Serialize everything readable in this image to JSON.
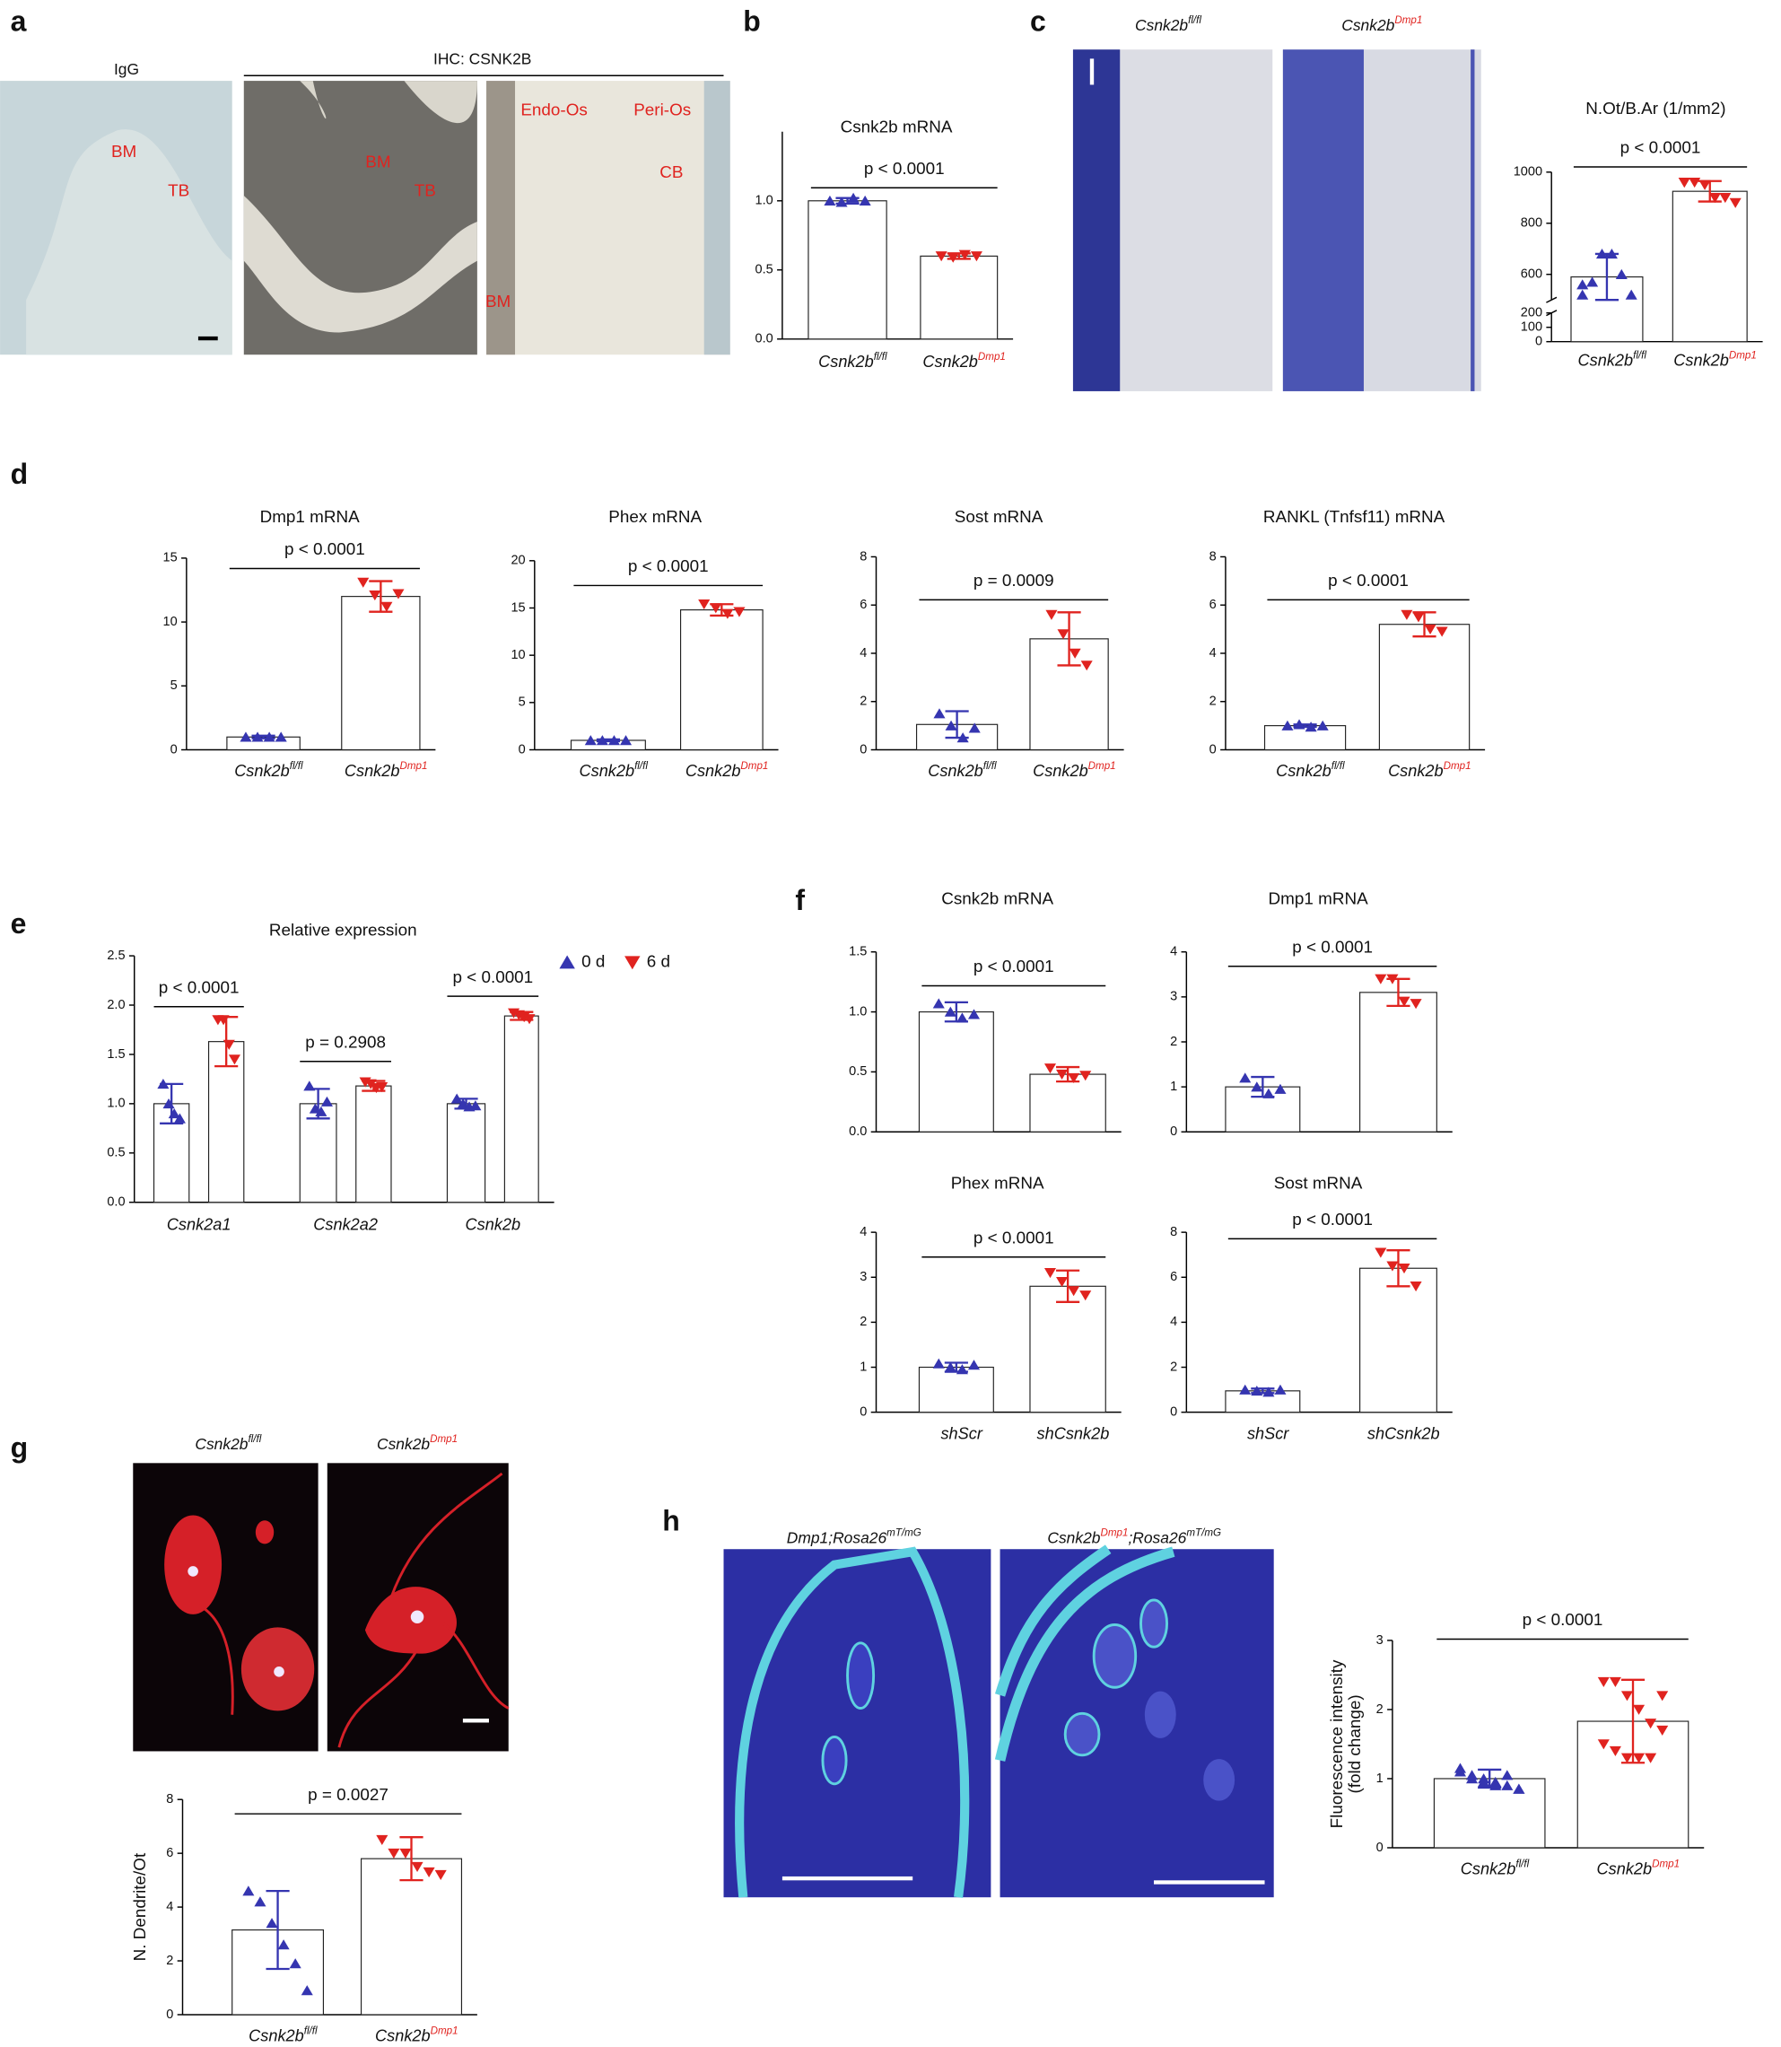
{
  "panel_letters": [
    "a",
    "b",
    "c",
    "d",
    "e",
    "f",
    "g",
    "h"
  ],
  "panel_a": {
    "igg_label": "IgG",
    "ihc_label": "IHC: CSNK2B",
    "image_labels": [
      "BM",
      "TB",
      "BM",
      "TB",
      "Endo-Os",
      "Peri-Os",
      "CB",
      "BM"
    ]
  },
  "panel_c_images": [
    [
      "Csnk2b",
      "fl/fl"
    ],
    [
      "Csnk2b",
      "Dmp1"
    ]
  ],
  "panel_g_images": [
    [
      "Csnk2b",
      "fl/fl"
    ],
    [
      "Csnk2b",
      "Dmp1"
    ]
  ],
  "panel_h_images": [
    [
      "Dmp1;Rosa26",
      "mT/mG"
    ],
    [
      "Csnk2b",
      "Dmp1",
      ";Rosa26",
      "mT/mG"
    ]
  ],
  "chart_data": [
    {
      "type": "bar",
      "title": "Csnk2b mRNA",
      "categories": [
        "Csnk2b",
        "Csnk2b"
      ],
      "category_superscripts": [
        "fl/fl",
        "Dmp1"
      ],
      "values": [
        1.0,
        0.6
      ],
      "errors": [
        0.02,
        0.02
      ],
      "points": [
        [
          1.0,
          0.99,
          1.02,
          1.0
        ],
        [
          0.6,
          0.59,
          0.61,
          0.6
        ]
      ],
      "colors": [
        "#3535b0",
        "#e0231f"
      ],
      "markers": [
        "triangle-up",
        "triangle-down"
      ],
      "annotation": "p < 0.0001",
      "ylim": [
        0,
        1.5
      ],
      "yticks": [
        {
          "value": 0,
          "label": "0.0"
        },
        {
          "value": 0.5,
          "label": "0.5"
        },
        {
          "value": 1.0,
          "label": "1.0"
        }
      ]
    },
    {
      "type": "bar",
      "title": "N.Ot/B.Ar (1/mm2)",
      "categories": [
        "Csnk2b",
        "Csnk2b"
      ],
      "category_superscripts": [
        "fl/fl",
        "Dmp1"
      ],
      "values": [
        590,
        925
      ],
      "errors": [
        90,
        40
      ],
      "points": [
        [
          560,
          570,
          680,
          680,
          600,
          520,
          520
        ],
        [
          960,
          960,
          950,
          900,
          900,
          880,
          960
        ]
      ],
      "colors": [
        "#3535b0",
        "#e0231f"
      ],
      "markers": [
        "triangle-up",
        "triangle-down"
      ],
      "annotation": "p < 0.0001",
      "ylim": [
        0,
        1000
      ],
      "axis_break": [
        200,
        500
      ],
      "yticks": [
        0,
        100,
        200,
        600,
        800,
        1000
      ]
    },
    {
      "type": "bar",
      "title": "Dmp1 mRNA",
      "categories": [
        "Csnk2b",
        "Csnk2b"
      ],
      "category_superscripts": [
        "fl/fl",
        "Dmp1"
      ],
      "values": [
        1.0,
        12.0
      ],
      "errors": [
        0.1,
        1.2
      ],
      "points": [
        [
          1.0,
          1.0,
          1.0,
          1.0
        ],
        [
          13.1,
          12.1,
          11.2,
          12.2
        ]
      ],
      "colors": [
        "#3535b0",
        "#e0231f"
      ],
      "markers": [
        "triangle-up",
        "triangle-down"
      ],
      "annotation": "p < 0.0001",
      "ylim": [
        0,
        15
      ],
      "yticks": [
        0,
        5,
        10,
        15
      ]
    },
    {
      "type": "bar",
      "title": "Phex mRNA",
      "categories": [
        "Csnk2b",
        "Csnk2b"
      ],
      "category_superscripts": [
        "fl/fl",
        "Dmp1"
      ],
      "values": [
        1.0,
        14.8
      ],
      "errors": [
        0.1,
        0.6
      ],
      "points": [
        [
          1.0,
          1.0,
          1.0,
          1.0
        ],
        [
          15.4,
          15.0,
          14.4,
          14.6
        ]
      ],
      "colors": [
        "#3535b0",
        "#e0231f"
      ],
      "markers": [
        "triangle-up",
        "triangle-down"
      ],
      "annotation": "p < 0.0001",
      "ylim": [
        0,
        20
      ],
      "yticks": [
        0,
        5,
        10,
        15,
        20
      ]
    },
    {
      "type": "bar",
      "title": "Sost mRNA",
      "categories": [
        "Csnk2b",
        "Csnk2b"
      ],
      "category_superscripts": [
        "fl/fl",
        "Dmp1"
      ],
      "values": [
        1.05,
        4.6
      ],
      "errors": [
        0.55,
        1.1
      ],
      "points": [
        [
          1.5,
          1.0,
          0.5,
          0.9
        ],
        [
          5.6,
          4.8,
          4.0,
          3.5
        ]
      ],
      "colors": [
        "#3535b0",
        "#e0231f"
      ],
      "markers": [
        "triangle-up",
        "triangle-down"
      ],
      "annotation": "p = 0.0009",
      "ylim": [
        0,
        8
      ],
      "yticks": [
        0,
        2,
        4,
        6,
        8
      ]
    },
    {
      "type": "bar",
      "title": "RANKL (Tnfsf11) mRNA",
      "categories": [
        "Csnk2b",
        "Csnk2b"
      ],
      "category_superscripts": [
        "fl/fl",
        "Dmp1"
      ],
      "values": [
        1.0,
        5.2
      ],
      "errors": [
        0.05,
        0.5
      ],
      "points": [
        [
          1.0,
          1.05,
          0.95,
          1.0
        ],
        [
          5.6,
          5.5,
          5.0,
          4.9
        ]
      ],
      "colors": [
        "#3535b0",
        "#e0231f"
      ],
      "markers": [
        "triangle-up",
        "triangle-down"
      ],
      "annotation": "p < 0.0001",
      "ylim": [
        0,
        8
      ],
      "yticks": [
        0,
        2,
        4,
        6,
        8
      ]
    },
    {
      "type": "bar",
      "title": "Relative  expression",
      "categories": [
        "Csnk2a1",
        "Csnk2a2",
        "Csnk2b"
      ],
      "series": [
        {
          "name": "0 d",
          "color": "#3535b0",
          "marker": "triangle-up",
          "values": [
            1.0,
            1.0,
            1.0
          ],
          "errors": [
            0.2,
            0.15,
            0.05
          ],
          "points": [
            [
              1.2,
              1.0,
              0.9,
              0.85
            ],
            [
              1.18,
              0.95,
              0.92,
              1.02
            ],
            [
              1.05,
              1.0,
              0.97,
              0.98
            ]
          ]
        },
        {
          "name": "6 d",
          "color": "#e0231f",
          "marker": "triangle-down",
          "values": [
            1.63,
            1.18,
            1.89
          ],
          "errors": [
            0.25,
            0.05,
            0.04
          ],
          "points": [
            [
              1.85,
              1.85,
              1.6,
              1.45
            ],
            [
              1.22,
              1.2,
              1.16,
              1.17
            ],
            [
              1.92,
              1.9,
              1.88,
              1.86
            ]
          ]
        }
      ],
      "annotations": [
        "p < 0.0001",
        "p = 0.2908",
        "p < 0.0001"
      ],
      "ylim": [
        0,
        2.5
      ],
      "yticks": [
        {
          "value": 0,
          "label": "0.0"
        },
        {
          "value": 0.5,
          "label": "0.5"
        },
        {
          "value": 1.0,
          "label": "1.0"
        },
        {
          "value": 1.5,
          "label": "1.5"
        },
        {
          "value": 2.0,
          "label": "2.0"
        },
        {
          "value": 2.5,
          "label": "2.5"
        }
      ]
    },
    {
      "type": "bar",
      "title": "Csnk2b mRNA",
      "categories": [
        null,
        null
      ],
      "values": [
        1.0,
        0.48
      ],
      "errors": [
        0.08,
        0.06
      ],
      "points": [
        [
          1.07,
          1.0,
          0.95,
          0.98
        ],
        [
          0.53,
          0.48,
          0.45,
          0.47
        ]
      ],
      "colors": [
        "#3535b0",
        "#e0231f"
      ],
      "markers": [
        "triangle-up",
        "triangle-down"
      ],
      "annotation": "p < 0.0001",
      "ylim": [
        0,
        1.5
      ],
      "yticks": [
        {
          "value": 0,
          "label": "0.0"
        },
        {
          "value": 0.5,
          "label": "0.5"
        },
        {
          "value": 1.0,
          "label": "1.0"
        },
        {
          "value": 1.5,
          "label": "1.5"
        }
      ]
    },
    {
      "type": "bar",
      "title": "Dmp1 mRNA",
      "categories": [
        null,
        null
      ],
      "values": [
        1.0,
        3.1
      ],
      "errors": [
        0.22,
        0.3
      ],
      "points": [
        [
          1.2,
          1.0,
          0.85,
          0.95
        ],
        [
          3.4,
          3.4,
          2.9,
          2.85
        ]
      ],
      "colors": [
        "#3535b0",
        "#e0231f"
      ],
      "markers": [
        "triangle-up",
        "triangle-down"
      ],
      "annotation": "p < 0.0001",
      "ylim": [
        0,
        4
      ],
      "yticks": [
        0,
        1,
        2,
        3,
        4
      ]
    },
    {
      "type": "bar",
      "title": "Phex mRNA",
      "categories": [
        "shScr",
        "shCsnk2b"
      ],
      "values": [
        1.0,
        2.8
      ],
      "errors": [
        0.1,
        0.35
      ],
      "points": [
        [
          1.08,
          1.0,
          0.95,
          1.05
        ],
        [
          3.1,
          2.9,
          2.7,
          2.6
        ]
      ],
      "colors": [
        "#3535b0",
        "#e0231f"
      ],
      "markers": [
        "triangle-up",
        "triangle-down"
      ],
      "annotation": "p < 0.0001",
      "ylim": [
        0,
        4
      ],
      "yticks": [
        0,
        1,
        2,
        3,
        4
      ]
    },
    {
      "type": "bar",
      "title": "Sost mRNA",
      "categories": [
        "shScr",
        "shCsnk2b"
      ],
      "values": [
        0.95,
        6.4
      ],
      "errors": [
        0.1,
        0.8
      ],
      "points": [
        [
          1.0,
          0.95,
          0.9,
          1.0
        ],
        [
          7.1,
          6.5,
          6.4,
          5.6
        ]
      ],
      "colors": [
        "#3535b0",
        "#e0231f"
      ],
      "markers": [
        "triangle-up",
        "triangle-down"
      ],
      "annotation": "p < 0.0001",
      "ylim": [
        0,
        8
      ],
      "yticks": [
        0,
        2,
        4,
        6,
        8
      ]
    },
    {
      "type": "bar",
      "ylabel": [
        "N. Dendrite/Ot"
      ],
      "categories": [
        "Csnk2b",
        "Csnk2b"
      ],
      "category_superscripts": [
        "fl/fl",
        "Dmp1"
      ],
      "values": [
        3.15,
        5.8
      ],
      "errors": [
        1.45,
        0.8
      ],
      "points": [
        [
          4.6,
          4.2,
          3.4,
          2.6,
          1.9,
          0.9
        ],
        [
          6.5,
          6.0,
          6.0,
          5.5,
          5.3,
          5.2
        ]
      ],
      "colors": [
        "#3535b0",
        "#e0231f"
      ],
      "markers": [
        "triangle-up",
        "triangle-down"
      ],
      "annotation": "p = 0.0027",
      "ylim": [
        0,
        8
      ],
      "yticks": [
        0,
        2,
        4,
        6,
        8
      ]
    },
    {
      "type": "bar",
      "ylabel": [
        "Fluorescence intensity",
        "(fold change)"
      ],
      "categories": [
        "Csnk2b",
        "Csnk2b"
      ],
      "category_superscripts": [
        "fl/fl",
        "Dmp1"
      ],
      "values": [
        1.0,
        1.83
      ],
      "errors": [
        0.13,
        0.6
      ],
      "points": [
        [
          1.1,
          1.05,
          1.0,
          0.95,
          0.9,
          0.85,
          1.15,
          1.0,
          0.95,
          0.9,
          1.05,
          0.85
        ],
        [
          2.4,
          2.4,
          2.2,
          2.0,
          1.8,
          1.7,
          1.5,
          1.4,
          1.3,
          1.3,
          1.3,
          2.2
        ]
      ],
      "colors": [
        "#3535b0",
        "#e0231f"
      ],
      "markers": [
        "triangle-up",
        "triangle-down"
      ],
      "annotation": "p < 0.0001",
      "ylim": [
        0,
        3
      ],
      "yticks": [
        0,
        1,
        2,
        3
      ]
    }
  ]
}
